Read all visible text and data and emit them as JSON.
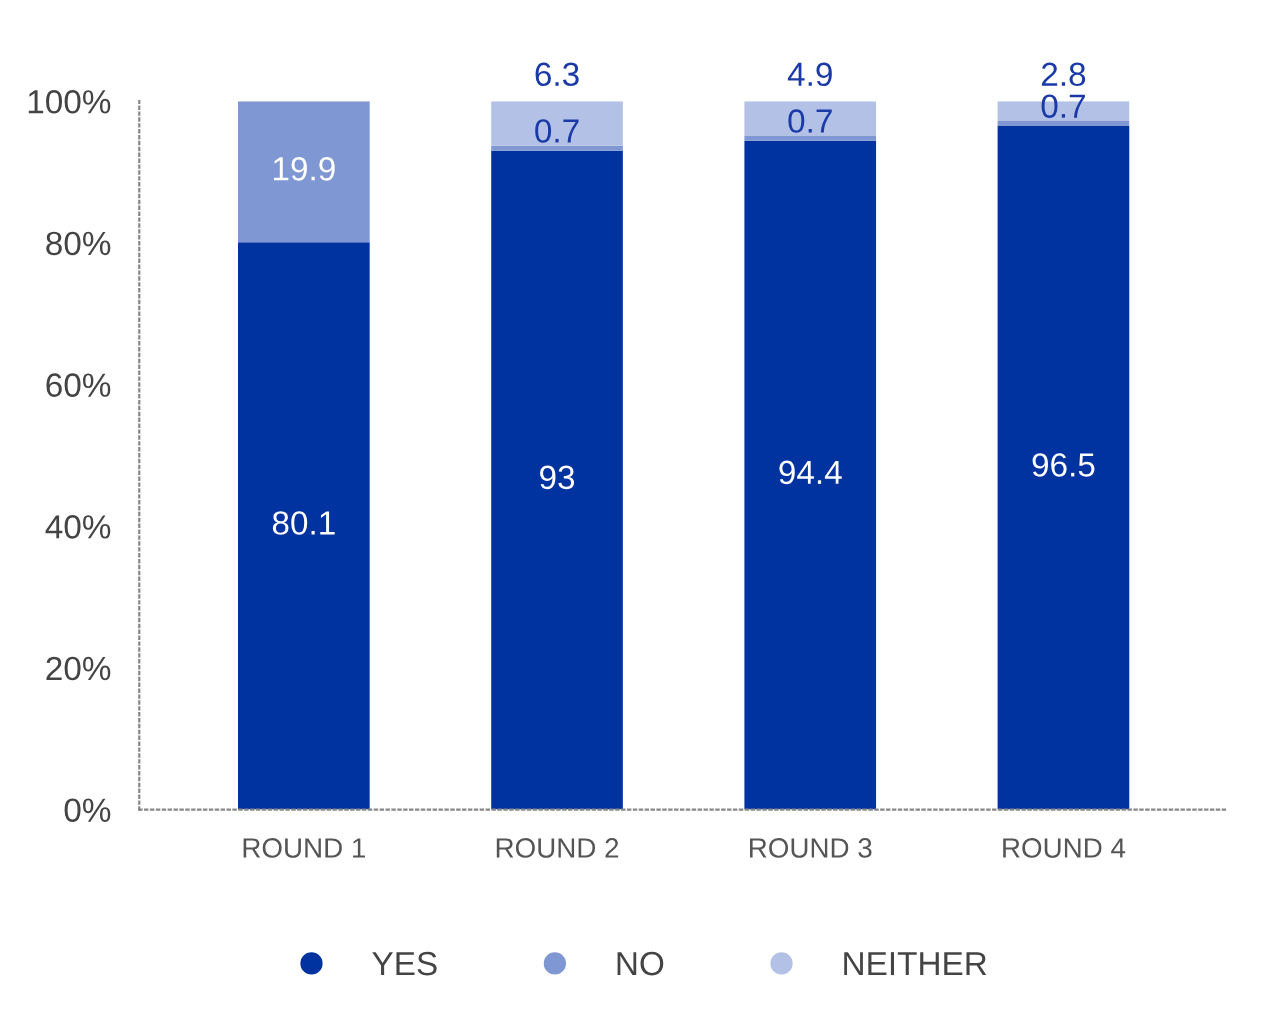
{
  "chart_data": {
    "type": "bar",
    "stacked": true,
    "categories": [
      "ROUND 1",
      "ROUND 2",
      "ROUND 3",
      "ROUND 4"
    ],
    "series": [
      {
        "name": "YES",
        "color": "#0033a0",
        "values": [
          80.1,
          93,
          94.4,
          96.5
        ]
      },
      {
        "name": "NO",
        "color": "#7f97d2",
        "values": [
          19.9,
          0.7,
          0.7,
          0.7
        ]
      },
      {
        "name": "NEITHER",
        "color": "#b3c1e6",
        "values": [
          null,
          6.3,
          4.9,
          2.8
        ]
      }
    ],
    "data_labels": true,
    "ylim": [
      0,
      100
    ],
    "yticks": [
      {
        "value": 0,
        "label": "0%"
      },
      {
        "value": 20,
        "label": "20%"
      },
      {
        "value": 40,
        "label": "40%"
      },
      {
        "value": 60,
        "label": "60%"
      },
      {
        "value": 80,
        "label": "80%"
      },
      {
        "value": 100,
        "label": "100%"
      }
    ],
    "grid": false,
    "legend": "bottom"
  }
}
